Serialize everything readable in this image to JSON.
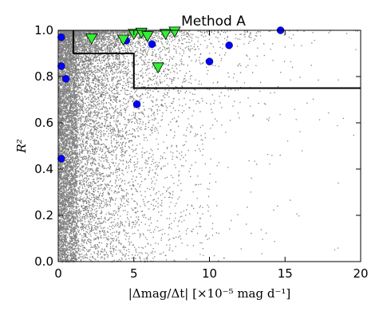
{
  "chart_data": {
    "type": "scatter",
    "title": "Method A",
    "xlabel": "|Δmag/Δt| [×10⁻⁵ mag d⁻¹]",
    "ylabel": "R²",
    "xlim": [
      0,
      20
    ],
    "ylim": [
      0,
      1.0
    ],
    "x_ticks": [
      0,
      5,
      10,
      15,
      20
    ],
    "y_ticks": [
      0.0,
      0.2,
      0.4,
      0.6,
      0.8,
      1.0
    ],
    "x_tick_labels": [
      "0",
      "5",
      "10",
      "15",
      "20"
    ],
    "y_tick_labels": [
      "0.0",
      "0.2",
      "0.4",
      "0.6",
      "0.8",
      "1.0"
    ],
    "grid": false,
    "legend": "none",
    "colors": {
      "background_points": "#808080",
      "blue_points": "#0000ff",
      "green_points": "#33ee33",
      "boundary": "#000000"
    },
    "background_cloud": {
      "description_marker": "small grey dots",
      "point_count": 9000,
      "x_range": [
        0,
        20
      ],
      "y_range": [
        0,
        1.0
      ]
    },
    "series": [
      {
        "marker": "circle",
        "color": "#0000ff",
        "points": [
          [
            0.2,
            0.97
          ],
          [
            0.2,
            0.845
          ],
          [
            0.5,
            0.79
          ],
          [
            0.2,
            0.445
          ],
          [
            4.5,
            0.955
          ],
          [
            6.2,
            0.94
          ],
          [
            5.2,
            0.68
          ],
          [
            10.0,
            0.865
          ],
          [
            11.3,
            0.935
          ],
          [
            14.7,
            1.0
          ]
        ]
      },
      {
        "marker": "triangle-down",
        "color": "#33ee33",
        "points": [
          [
            2.2,
            0.965
          ],
          [
            4.3,
            0.96
          ],
          [
            5.0,
            0.985
          ],
          [
            5.5,
            0.99
          ],
          [
            5.9,
            0.975
          ],
          [
            6.6,
            0.84
          ],
          [
            7.1,
            0.985
          ],
          [
            7.7,
            0.995
          ]
        ]
      }
    ],
    "boundary_line": [
      [
        1,
        1.0
      ],
      [
        1,
        0.9
      ],
      [
        5,
        0.9
      ],
      [
        5,
        0.75
      ],
      [
        20,
        0.75
      ]
    ]
  }
}
